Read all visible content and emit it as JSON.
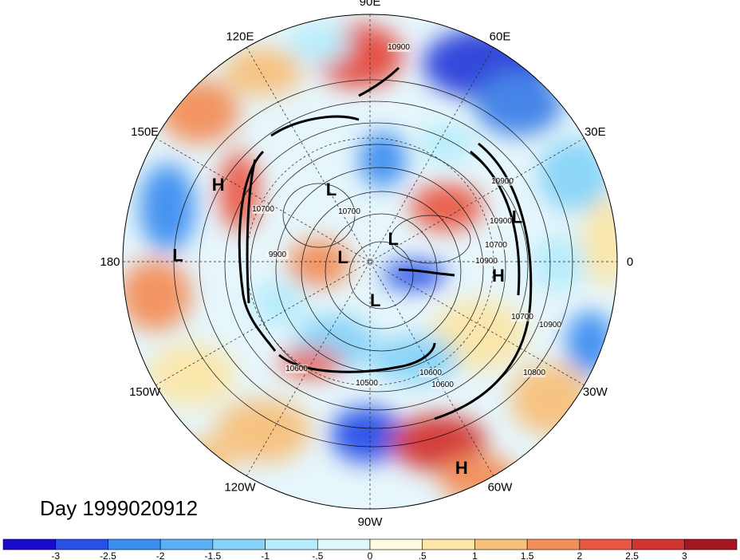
{
  "title": "Day 1999020912",
  "longitude_labels": [
    {
      "text": "90E",
      "lon": 90
    },
    {
      "text": "60E",
      "lon": 60
    },
    {
      "text": "30E",
      "lon": 30
    },
    {
      "text": "0",
      "lon": 0
    },
    {
      "text": "30W",
      "lon": -30
    },
    {
      "text": "60W",
      "lon": -60
    },
    {
      "text": "90W",
      "lon": -90
    },
    {
      "text": "120W",
      "lon": -120
    },
    {
      "text": "150W",
      "lon": -150
    },
    {
      "text": "180",
      "lon": 180
    },
    {
      "text": "150E",
      "lon": 150
    },
    {
      "text": "120E",
      "lon": 120
    }
  ],
  "pressure_centers": [
    {
      "type": "H",
      "label": "H",
      "lon": 153,
      "lat": 28
    },
    {
      "type": "L",
      "label": "L",
      "lon": 178,
      "lat": 20
    },
    {
      "type": "L",
      "label": "L",
      "lon": 17,
      "lat": 34
    },
    {
      "type": "H",
      "label": "H",
      "lon": -6,
      "lat": 43
    },
    {
      "type": "H",
      "label": "H",
      "lon": -66,
      "lat": 8
    },
    {
      "type": "L",
      "label": "L",
      "lon": 118,
      "lat": 60
    },
    {
      "type": "L",
      "label": "L",
      "lon": 170,
      "lat": 80
    },
    {
      "type": "L",
      "label": "L",
      "lon": 45,
      "lat": 78
    },
    {
      "type": "L",
      "label": "L",
      "lon": -82,
      "lat": 76
    }
  ],
  "contour_labels": [
    "10900",
    "10900",
    "10900",
    "10900",
    "10900",
    "10700",
    "10700",
    "10700",
    "10700",
    "9900",
    "10600",
    "10600",
    "10600",
    "10500",
    "10800"
  ],
  "colorbar": {
    "ticks": [
      "-3",
      "-2.5",
      "-2",
      "-1.5",
      "-1",
      "-.5",
      "0",
      ".5",
      "1",
      "1.5",
      "2",
      "2.5",
      "3"
    ],
    "colors": [
      "#1a0acc",
      "#2850e6",
      "#3c8ef0",
      "#5aaff5",
      "#86d3f8",
      "#b6ecfb",
      "#e0f7fd",
      "#fefbe0",
      "#fbe6a8",
      "#f7c07c",
      "#f38f5a",
      "#ea5844",
      "#d23430",
      "#a31622"
    ]
  },
  "colors": {
    "contour": "#000000",
    "grid": "#222222",
    "background": "#ffffff"
  }
}
